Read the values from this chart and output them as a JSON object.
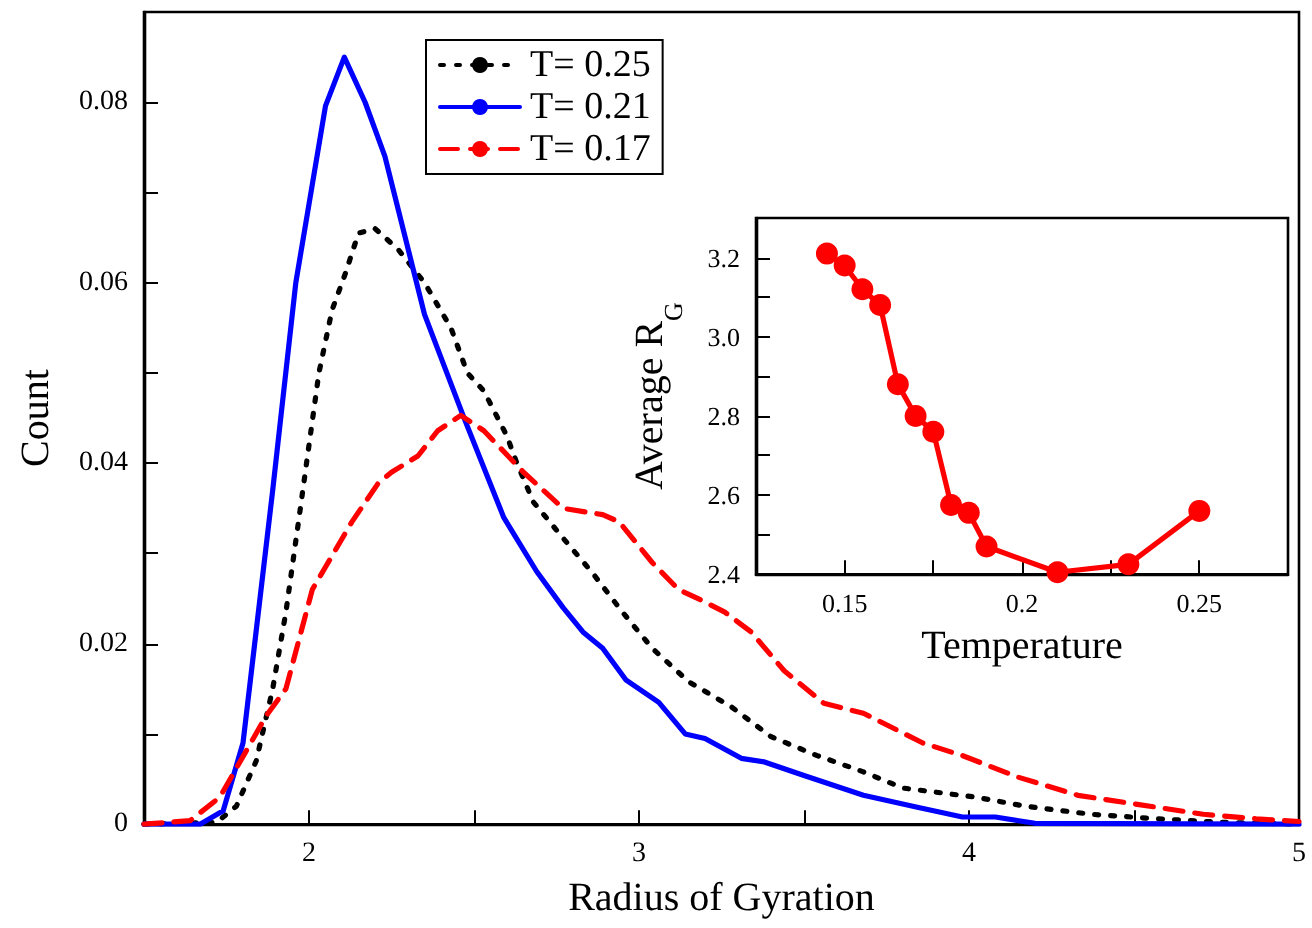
{
  "chart_data": [
    {
      "type": "line",
      "xlabel": "Radius of Gyration",
      "ylabel": "Count",
      "xlim": [
        1.5,
        5
      ],
      "ylim": [
        0,
        0.09
      ],
      "xticks": [
        2,
        3,
        4,
        5,
        {
          "value": 2.5,
          "label": null
        },
        {
          "value": 3.5,
          "label": null
        },
        {
          "value": 4.5,
          "label": null
        }
      ],
      "yticks": [
        0,
        0.02,
        0.04,
        0.06,
        0.08,
        {
          "value": 0.01,
          "label": null
        },
        {
          "value": 0.03,
          "label": null
        },
        {
          "value": 0.05,
          "label": null
        },
        {
          "value": 0.07,
          "label": null
        }
      ],
      "grid": false,
      "legend": "top left",
      "marker": "none",
      "series": [
        {
          "name": "T= 0.25",
          "color": "#000000",
          "line_style": "dotted",
          "x": [
            1.5,
            1.72,
            1.78,
            1.84,
            1.89,
            1.93,
            1.97,
            2.0,
            2.03,
            2.07,
            2.11,
            2.15,
            2.2,
            2.27,
            2.35,
            2.43,
            2.48,
            2.53,
            2.6,
            2.63,
            2.68,
            2.77,
            2.86,
            2.95,
            3.04,
            3.15,
            3.28,
            3.4,
            3.54,
            3.68,
            3.8,
            4.02,
            4.17,
            4.37,
            4.57,
            4.77,
            5.0
          ],
          "values": [
            0,
            0.0002,
            0.002,
            0.007,
            0.015,
            0.0235,
            0.034,
            0.042,
            0.05,
            0.057,
            0.061,
            0.0655,
            0.066,
            0.0637,
            0.06,
            0.055,
            0.05,
            0.048,
            0.043,
            0.04,
            0.0357,
            0.0317,
            0.0278,
            0.0235,
            0.0195,
            0.0158,
            0.013,
            0.0097,
            0.0076,
            0.0058,
            0.004,
            0.003,
            0.002,
            0.0011,
            0.0006,
            0.0002,
            0
          ]
        },
        {
          "name": "T= 0.21",
          "color": "#0000ff",
          "line_style": "solid",
          "x": [
            1.5,
            1.67,
            1.74,
            1.8,
            1.89,
            1.96,
            2.05,
            2.107,
            2.17,
            2.23,
            2.35,
            2.47,
            2.59,
            2.69,
            2.77,
            2.83,
            2.89,
            2.96,
            3.06,
            3.14,
            3.2,
            3.31,
            3.38,
            3.5,
            3.68,
            3.84,
            3.98,
            4.08,
            4.2,
            5.0
          ],
          "values": [
            0,
            0,
            0.0015,
            0.009,
            0.037,
            0.06,
            0.0796,
            0.085,
            0.08,
            0.074,
            0.0565,
            0.045,
            0.034,
            0.028,
            0.024,
            0.0213,
            0.0195,
            0.016,
            0.0135,
            0.01,
            0.0095,
            0.0073,
            0.0069,
            0.0054,
            0.0032,
            0.0019,
            0.0008,
            0.0008,
            0.0001,
            0
          ]
        },
        {
          "name": "T= 0.17",
          "color": "#ff0000",
          "line_style": "dashed",
          "x": [
            1.5,
            1.64,
            1.73,
            1.87,
            1.93,
            2.01,
            2.05,
            2.13,
            2.21,
            2.25,
            2.33,
            2.39,
            2.46,
            2.53,
            2.65,
            2.77,
            2.89,
            2.94,
            3.04,
            3.12,
            3.19,
            3.26,
            3.34,
            3.44,
            3.56,
            3.68,
            3.86,
            3.98,
            4.15,
            4.33,
            4.51,
            4.71,
            4.87,
            5.0
          ],
          "values": [
            0,
            0.0004,
            0.003,
            0.012,
            0.015,
            0.026,
            0.0285,
            0.0335,
            0.0378,
            0.039,
            0.0408,
            0.0436,
            0.0453,
            0.0436,
            0.039,
            0.035,
            0.0343,
            0.0335,
            0.029,
            0.026,
            0.0248,
            0.0235,
            0.0213,
            0.017,
            0.0134,
            0.0123,
            0.009,
            0.0076,
            0.0052,
            0.0032,
            0.0022,
            0.0011,
            0.0006,
            0.0003
          ]
        }
      ]
    },
    {
      "type": "line",
      "xlabel": "Temperature",
      "ylabel": "Average R$_{G}$",
      "xlim": [
        0.125,
        0.275
      ],
      "ylim": [
        2.4,
        3.3
      ],
      "xticks": [
        0.15,
        0.2,
        0.25,
        {
          "value": 0.175,
          "label": null
        },
        {
          "value": 0.225,
          "label": null
        }
      ],
      "yticks": [
        {
          "value": 2.4,
          "label": "2.4"
        },
        {
          "value": 2.6,
          "label": "2.6"
        },
        {
          "value": 2.8,
          "label": "2.8"
        },
        {
          "value": 3.0,
          "label": "3.0"
        },
        {
          "value": 3.2,
          "label": "3.2"
        },
        {
          "value": 2.5,
          "label": null
        },
        {
          "value": 2.7,
          "label": null
        },
        {
          "value": 2.9,
          "label": null
        },
        {
          "value": 3.1,
          "label": null
        }
      ],
      "grid": false,
      "legend": false,
      "marker": "circle",
      "line_style": "solid",
      "series": [
        {
          "color": "#ff0000",
          "x": [
            0.145,
            0.15,
            0.155,
            0.16,
            0.165,
            0.17,
            0.175,
            0.18,
            0.185,
            0.19,
            0.21,
            0.23,
            0.25
          ],
          "values": [
            3.21,
            3.18,
            3.12,
            3.08,
            2.88,
            2.8,
            2.76,
            2.575,
            2.555,
            2.47,
            2.405,
            2.425,
            2.56
          ]
        }
      ]
    }
  ]
}
